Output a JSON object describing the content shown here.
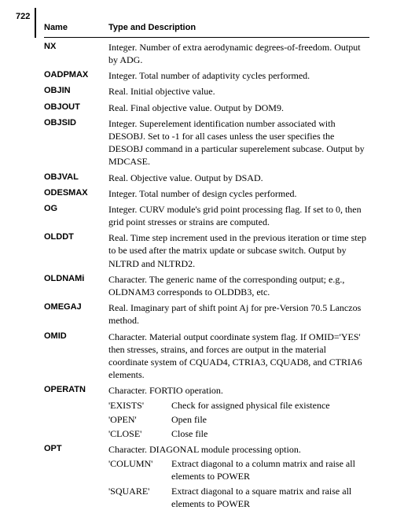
{
  "page_number": "722",
  "header": {
    "name": "Name",
    "desc": "Type and Description"
  },
  "rows": [
    {
      "name": "NX",
      "desc": "Integer. Number of extra aerodynamic degrees-of-freedom. Output by ADG."
    },
    {
      "name": "OADPMAX",
      "desc": "Integer. Total number of adaptivity cycles performed."
    },
    {
      "name": "OBJIN",
      "desc": "Real. Initial objective value."
    },
    {
      "name": "OBJOUT",
      "desc": "Real. Final objective value. Output by DOM9."
    },
    {
      "name": "OBJSID",
      "desc": "Integer. Superelement identification number associated with DESOBJ. Set to -1 for all cases unless the user specifies the DESOBJ command in a particular superelement subcase. Output by MDCASE."
    },
    {
      "name": "OBJVAL",
      "desc": "Real. Objective value. Output by DSAD."
    },
    {
      "name": "ODESMAX",
      "desc": "Integer. Total number of design cycles performed."
    },
    {
      "name": "OG",
      "desc": "Integer. CURV module's grid point processing flag. If set to 0, then grid point stresses or strains are computed."
    },
    {
      "name": "OLDDT",
      "desc": "Real. Time step increment used in the previous iteration or time step to be used after the matrix update or subcase switch. Output by NLTRD and NLTRD2."
    },
    {
      "name": "OLDNAMi",
      "desc": "Character. The generic name of the corresponding output; e.g., OLDNAM3 corresponds to OLDDB3, etc."
    },
    {
      "name": "OMEGAJ",
      "desc": "Real. Imaginary part of shift point Aj for pre-Version 70.5 Lanczos method."
    },
    {
      "name": "OMID",
      "desc": "Character. Material output coordinate system flag. If OMID='YES' then stresses, strains, and forces are output in the material coordinate system of CQUAD4, CTRIA3, CQUAD8, and CTRIA6 elements."
    },
    {
      "name": "OPERATN",
      "desc": "Character. FORTIO operation.",
      "subs": [
        {
          "k": "'EXISTS'",
          "v": "Check for assigned physical file existence"
        },
        {
          "k": "'OPEN'",
          "v": "Open file"
        },
        {
          "k": "'CLOSE'",
          "v": "Close file"
        }
      ]
    },
    {
      "name": "OPT",
      "desc": "Character. DIAGONAL module processing option.",
      "subs": [
        {
          "k": "'COLUMN'",
          "v": "Extract diagonal to a column matrix and raise all elements to POWER"
        },
        {
          "k": "'SQUARE'",
          "v": "Extract diagonal to a square matrix and raise all elements to POWER"
        }
      ]
    }
  ]
}
